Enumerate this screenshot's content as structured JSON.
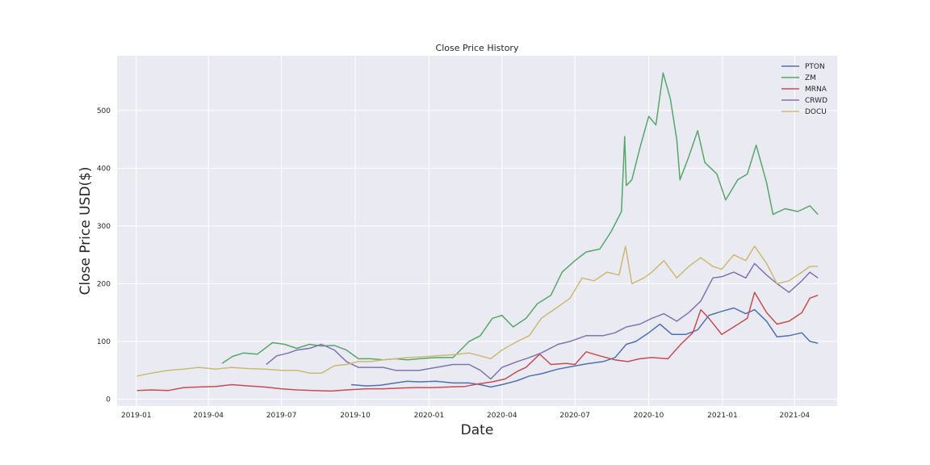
{
  "chart_data": {
    "type": "line",
    "title": "Close Price History",
    "xlabel": "Date",
    "ylabel": "Close Price USD($)",
    "xlim": [
      "2018-12-08",
      "2021-05-24"
    ],
    "ylim": [
      -12,
      595
    ],
    "x_ticks": [
      "2019-01",
      "2019-04",
      "2019-07",
      "2019-10",
      "2020-01",
      "2020-04",
      "2020-07",
      "2020-10",
      "2021-01",
      "2021-04"
    ],
    "y_ticks": [
      0,
      100,
      200,
      300,
      400,
      500
    ],
    "grid": true,
    "legend_position": "top-right",
    "series": [
      {
        "name": "PTON",
        "color": "#4c72b0",
        "points": [
          [
            "2019-09-26",
            25
          ],
          [
            "2019-10-15",
            23
          ],
          [
            "2019-11-01",
            24
          ],
          [
            "2019-11-20",
            28
          ],
          [
            "2019-12-05",
            31
          ],
          [
            "2019-12-20",
            30
          ],
          [
            "2020-01-10",
            31
          ],
          [
            "2020-01-31",
            28
          ],
          [
            "2020-02-20",
            28
          ],
          [
            "2020-03-05",
            25
          ],
          [
            "2020-03-18",
            21
          ],
          [
            "2020-04-01",
            25
          ],
          [
            "2020-04-20",
            32
          ],
          [
            "2020-05-05",
            40
          ],
          [
            "2020-05-20",
            44
          ],
          [
            "2020-06-10",
            52
          ],
          [
            "2020-06-25",
            56
          ],
          [
            "2020-07-15",
            61
          ],
          [
            "2020-08-05",
            65
          ],
          [
            "2020-08-20",
            72
          ],
          [
            "2020-09-03",
            95
          ],
          [
            "2020-09-15",
            100
          ],
          [
            "2020-10-01",
            115
          ],
          [
            "2020-10-15",
            130
          ],
          [
            "2020-10-30",
            112
          ],
          [
            "2020-11-16",
            112
          ],
          [
            "2020-12-01",
            120
          ],
          [
            "2020-12-15",
            145
          ],
          [
            "2020-12-31",
            152
          ],
          [
            "2021-01-15",
            158
          ],
          [
            "2021-01-30",
            148
          ],
          [
            "2021-02-10",
            155
          ],
          [
            "2021-02-25",
            135
          ],
          [
            "2021-03-10",
            108
          ],
          [
            "2021-03-25",
            110
          ],
          [
            "2021-04-10",
            115
          ],
          [
            "2021-04-20",
            100
          ],
          [
            "2021-04-30",
            97
          ]
        ]
      },
      {
        "name": "ZM",
        "color": "#55a868",
        "points": [
          [
            "2019-04-18",
            62
          ],
          [
            "2019-05-01",
            74
          ],
          [
            "2019-05-15",
            80
          ],
          [
            "2019-06-01",
            78
          ],
          [
            "2019-06-20",
            98
          ],
          [
            "2019-07-05",
            95
          ],
          [
            "2019-07-20",
            88
          ],
          [
            "2019-08-05",
            95
          ],
          [
            "2019-08-20",
            92
          ],
          [
            "2019-09-05",
            93
          ],
          [
            "2019-09-20",
            85
          ],
          [
            "2019-10-05",
            70
          ],
          [
            "2019-10-20",
            70
          ],
          [
            "2019-11-05",
            68
          ],
          [
            "2019-11-20",
            70
          ],
          [
            "2019-12-05",
            68
          ],
          [
            "2019-12-20",
            70
          ],
          [
            "2020-01-10",
            72
          ],
          [
            "2020-01-31",
            72
          ],
          [
            "2020-02-20",
            100
          ],
          [
            "2020-03-05",
            110
          ],
          [
            "2020-03-20",
            140
          ],
          [
            "2020-04-01",
            145
          ],
          [
            "2020-04-15",
            125
          ],
          [
            "2020-05-01",
            140
          ],
          [
            "2020-05-15",
            165
          ],
          [
            "2020-06-01",
            180
          ],
          [
            "2020-06-15",
            220
          ],
          [
            "2020-07-01",
            240
          ],
          [
            "2020-07-15",
            255
          ],
          [
            "2020-08-01",
            260
          ],
          [
            "2020-08-15",
            290
          ],
          [
            "2020-08-28",
            325
          ],
          [
            "2020-09-01",
            455
          ],
          [
            "2020-09-03",
            370
          ],
          [
            "2020-09-10",
            380
          ],
          [
            "2020-09-20",
            435
          ],
          [
            "2020-10-01",
            490
          ],
          [
            "2020-10-10",
            475
          ],
          [
            "2020-10-19",
            565
          ],
          [
            "2020-10-28",
            520
          ],
          [
            "2020-11-05",
            450
          ],
          [
            "2020-11-09",
            380
          ],
          [
            "2020-11-20",
            420
          ],
          [
            "2020-12-01",
            465
          ],
          [
            "2020-12-10",
            410
          ],
          [
            "2020-12-25",
            390
          ],
          [
            "2021-01-05",
            345
          ],
          [
            "2021-01-20",
            380
          ],
          [
            "2021-02-01",
            390
          ],
          [
            "2021-02-12",
            440
          ],
          [
            "2021-02-25",
            375
          ],
          [
            "2021-03-05",
            320
          ],
          [
            "2021-03-20",
            330
          ],
          [
            "2021-04-05",
            325
          ],
          [
            "2021-04-20",
            335
          ],
          [
            "2021-04-30",
            320
          ]
        ]
      },
      {
        "name": "MRNA",
        "color": "#c44e52",
        "points": [
          [
            "2019-01-02",
            15
          ],
          [
            "2019-01-20",
            16
          ],
          [
            "2019-02-10",
            15
          ],
          [
            "2019-03-01",
            20
          ],
          [
            "2019-03-20",
            21
          ],
          [
            "2019-04-10",
            22
          ],
          [
            "2019-04-30",
            25
          ],
          [
            "2019-05-20",
            23
          ],
          [
            "2019-06-10",
            21
          ],
          [
            "2019-07-01",
            18
          ],
          [
            "2019-07-20",
            16
          ],
          [
            "2019-08-10",
            15
          ],
          [
            "2019-09-01",
            14
          ],
          [
            "2019-09-20",
            16
          ],
          [
            "2019-10-15",
            18
          ],
          [
            "2019-11-05",
            18
          ],
          [
            "2019-11-25",
            19
          ],
          [
            "2019-12-15",
            20
          ],
          [
            "2020-01-05",
            20
          ],
          [
            "2020-01-25",
            21
          ],
          [
            "2020-02-15",
            22
          ],
          [
            "2020-03-01",
            26
          ],
          [
            "2020-03-20",
            30
          ],
          [
            "2020-04-05",
            35
          ],
          [
            "2020-04-20",
            48
          ],
          [
            "2020-05-01",
            55
          ],
          [
            "2020-05-18",
            78
          ],
          [
            "2020-06-01",
            60
          ],
          [
            "2020-06-20",
            62
          ],
          [
            "2020-07-01",
            60
          ],
          [
            "2020-07-15",
            82
          ],
          [
            "2020-08-01",
            75
          ],
          [
            "2020-08-20",
            68
          ],
          [
            "2020-09-05",
            65
          ],
          [
            "2020-09-20",
            70
          ],
          [
            "2020-10-05",
            72
          ],
          [
            "2020-10-25",
            70
          ],
          [
            "2020-11-10",
            95
          ],
          [
            "2020-11-25",
            115
          ],
          [
            "2020-12-05",
            155
          ],
          [
            "2020-12-15",
            140
          ],
          [
            "2020-12-31",
            112
          ],
          [
            "2021-01-15",
            125
          ],
          [
            "2021-02-01",
            140
          ],
          [
            "2021-02-10",
            185
          ],
          [
            "2021-02-25",
            150
          ],
          [
            "2021-03-10",
            130
          ],
          [
            "2021-03-25",
            135
          ],
          [
            "2021-04-10",
            150
          ],
          [
            "2021-04-20",
            175
          ],
          [
            "2021-04-30",
            180
          ]
        ]
      },
      {
        "name": "CRWD",
        "color": "#8172b2",
        "points": [
          [
            "2019-06-12",
            60
          ],
          [
            "2019-06-25",
            75
          ],
          [
            "2019-07-10",
            80
          ],
          [
            "2019-07-20",
            85
          ],
          [
            "2019-08-05",
            88
          ],
          [
            "2019-08-20",
            95
          ],
          [
            "2019-09-05",
            85
          ],
          [
            "2019-09-20",
            65
          ],
          [
            "2019-10-05",
            55
          ],
          [
            "2019-10-20",
            55
          ],
          [
            "2019-11-05",
            55
          ],
          [
            "2019-11-20",
            50
          ],
          [
            "2019-12-05",
            50
          ],
          [
            "2019-12-20",
            50
          ],
          [
            "2020-01-10",
            55
          ],
          [
            "2020-01-31",
            60
          ],
          [
            "2020-02-20",
            60
          ],
          [
            "2020-03-05",
            50
          ],
          [
            "2020-03-18",
            35
          ],
          [
            "2020-04-01",
            55
          ],
          [
            "2020-04-20",
            65
          ],
          [
            "2020-05-05",
            72
          ],
          [
            "2020-05-20",
            80
          ],
          [
            "2020-06-10",
            95
          ],
          [
            "2020-06-25",
            100
          ],
          [
            "2020-07-15",
            110
          ],
          [
            "2020-08-05",
            110
          ],
          [
            "2020-08-20",
            115
          ],
          [
            "2020-09-03",
            125
          ],
          [
            "2020-09-20",
            130
          ],
          [
            "2020-10-05",
            140
          ],
          [
            "2020-10-20",
            148
          ],
          [
            "2020-11-05",
            135
          ],
          [
            "2020-11-20",
            150
          ],
          [
            "2020-12-05",
            170
          ],
          [
            "2020-12-20",
            210
          ],
          [
            "2020-12-31",
            212
          ],
          [
            "2021-01-15",
            220
          ],
          [
            "2021-01-30",
            210
          ],
          [
            "2021-02-10",
            235
          ],
          [
            "2021-02-25",
            215
          ],
          [
            "2021-03-10",
            200
          ],
          [
            "2021-03-25",
            185
          ],
          [
            "2021-04-10",
            205
          ],
          [
            "2021-04-20",
            220
          ],
          [
            "2021-04-30",
            210
          ]
        ]
      },
      {
        "name": "DOCU",
        "color": "#ccb974",
        "points": [
          [
            "2019-01-02",
            40
          ],
          [
            "2019-01-20",
            45
          ],
          [
            "2019-02-10",
            50
          ],
          [
            "2019-03-01",
            52
          ],
          [
            "2019-03-20",
            55
          ],
          [
            "2019-04-10",
            52
          ],
          [
            "2019-04-30",
            55
          ],
          [
            "2019-05-20",
            53
          ],
          [
            "2019-06-10",
            52
          ],
          [
            "2019-07-01",
            50
          ],
          [
            "2019-07-20",
            50
          ],
          [
            "2019-08-05",
            45
          ],
          [
            "2019-08-20",
            45
          ],
          [
            "2019-09-05",
            58
          ],
          [
            "2019-09-20",
            60
          ],
          [
            "2019-10-05",
            65
          ],
          [
            "2019-10-20",
            65
          ],
          [
            "2019-11-05",
            68
          ],
          [
            "2019-11-20",
            70
          ],
          [
            "2019-12-05",
            72
          ],
          [
            "2019-12-20",
            73
          ],
          [
            "2020-01-10",
            75
          ],
          [
            "2020-01-31",
            77
          ],
          [
            "2020-02-20",
            80
          ],
          [
            "2020-03-05",
            75
          ],
          [
            "2020-03-18",
            70
          ],
          [
            "2020-04-01",
            85
          ],
          [
            "2020-04-20",
            100
          ],
          [
            "2020-05-05",
            110
          ],
          [
            "2020-05-20",
            140
          ],
          [
            "2020-06-10",
            160
          ],
          [
            "2020-06-25",
            175
          ],
          [
            "2020-07-10",
            210
          ],
          [
            "2020-07-25",
            205
          ],
          [
            "2020-08-10",
            220
          ],
          [
            "2020-08-25",
            215
          ],
          [
            "2020-09-02",
            265
          ],
          [
            "2020-09-10",
            200
          ],
          [
            "2020-09-25",
            210
          ],
          [
            "2020-10-05",
            220
          ],
          [
            "2020-10-20",
            240
          ],
          [
            "2020-11-05",
            210
          ],
          [
            "2020-11-20",
            230
          ],
          [
            "2020-12-05",
            245
          ],
          [
            "2020-12-20",
            230
          ],
          [
            "2020-12-31",
            225
          ],
          [
            "2021-01-15",
            250
          ],
          [
            "2021-01-30",
            240
          ],
          [
            "2021-02-10",
            265
          ],
          [
            "2021-02-25",
            235
          ],
          [
            "2021-03-10",
            200
          ],
          [
            "2021-03-25",
            205
          ],
          [
            "2021-04-10",
            220
          ],
          [
            "2021-04-20",
            230
          ],
          [
            "2021-04-30",
            230
          ]
        ]
      }
    ]
  }
}
